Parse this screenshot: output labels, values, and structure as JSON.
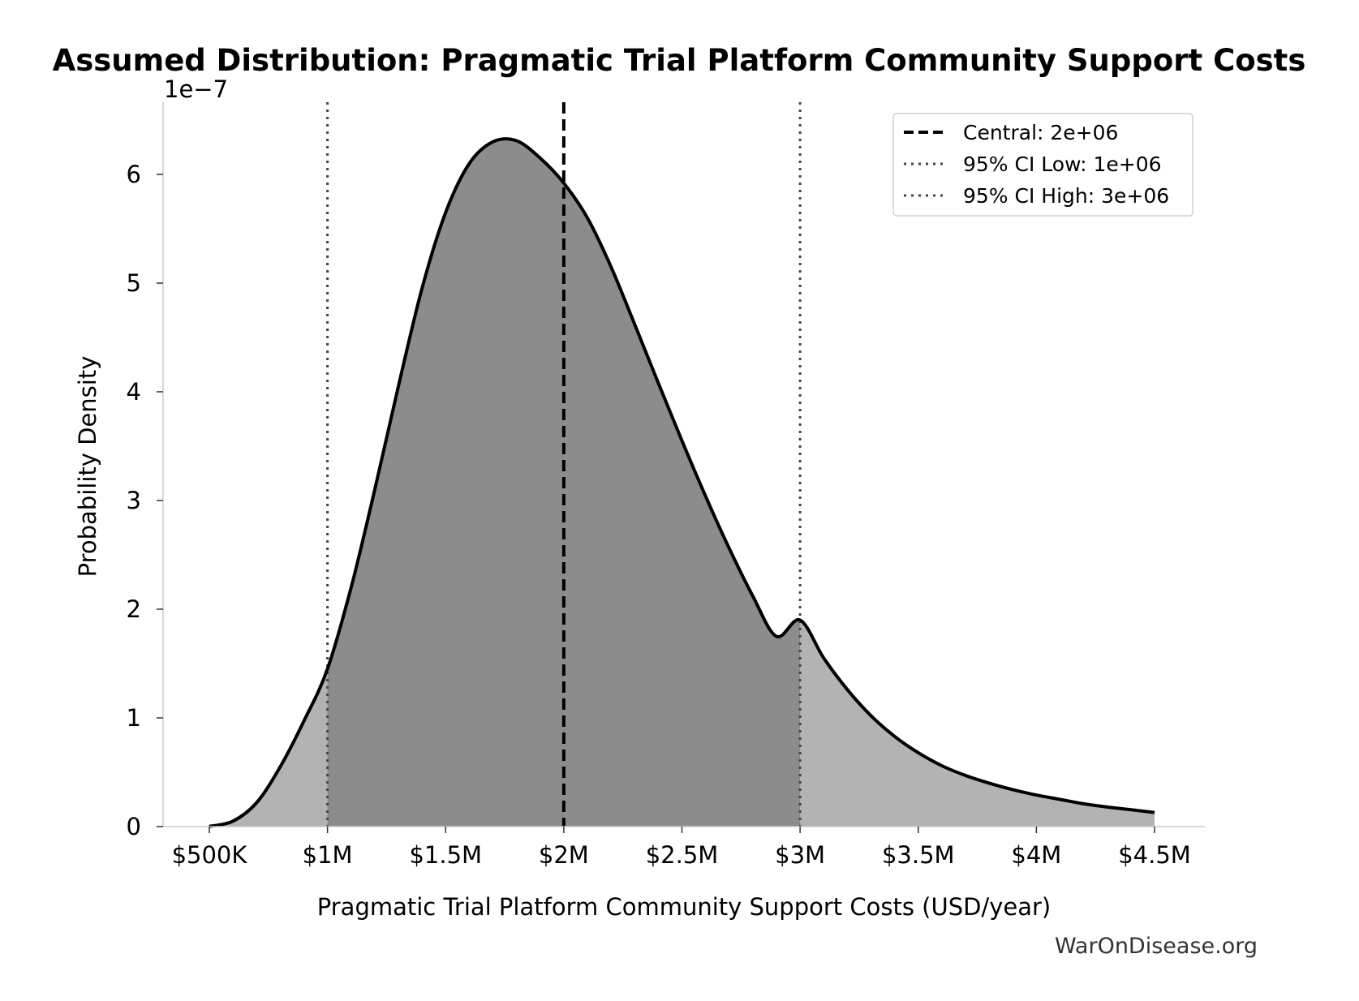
{
  "chart_data": {
    "type": "area",
    "title": "Assumed Distribution: Pragmatic Trial Platform Community Support Costs",
    "xlabel": "Pragmatic Trial Platform Community Support Costs (USD/year)",
    "ylabel": "Probability Density",
    "y_scale_label": "1e−7",
    "y_multiplier": 1e-07,
    "xlim": [
      400000,
      4700000
    ],
    "ylim": [
      0,
      6.6
    ],
    "x_ticks": [
      {
        "value": 500000,
        "label": "$500K"
      },
      {
        "value": 1000000,
        "label": "$1M"
      },
      {
        "value": 1500000,
        "label": "$1.5M"
      },
      {
        "value": 2000000,
        "label": "$2M"
      },
      {
        "value": 2500000,
        "label": "$2.5M"
      },
      {
        "value": 3000000,
        "label": "$3M"
      },
      {
        "value": 3500000,
        "label": "$3.5M"
      },
      {
        "value": 4000000,
        "label": "$4M"
      },
      {
        "value": 4500000,
        "label": "$4.5M"
      }
    ],
    "y_ticks": [
      {
        "value": 0,
        "label": "0"
      },
      {
        "value": 1,
        "label": "1"
      },
      {
        "value": 2,
        "label": "2"
      },
      {
        "value": 3,
        "label": "3"
      },
      {
        "value": 4,
        "label": "4"
      },
      {
        "value": 5,
        "label": "5"
      },
      {
        "value": 6,
        "label": "6"
      }
    ],
    "series": [
      {
        "x": [
          500000,
          600000,
          700000,
          800000,
          900000,
          1000000,
          1100000,
          1200000,
          1300000,
          1400000,
          1500000,
          1600000,
          1700000,
          1800000,
          1900000,
          2000000,
          2100000,
          2200000,
          2300000,
          2400000,
          2500000,
          2600000,
          2700000,
          2800000,
          2900000,
          3000000,
          3100000,
          3200000,
          3300000,
          3400000,
          3500000,
          3600000,
          3700000,
          3800000,
          3900000,
          4000000,
          4100000,
          4200000,
          4300000,
          4400000,
          4500000
        ],
        "y": [
          0.002,
          0.05,
          0.22,
          0.55,
          0.97,
          1.45,
          2.2,
          3.1,
          4.05,
          4.95,
          5.65,
          6.1,
          6.3,
          6.31,
          6.15,
          5.92,
          5.6,
          5.15,
          4.62,
          4.08,
          3.55,
          3.04,
          2.56,
          2.12,
          1.75,
          1.9,
          1.55,
          1.26,
          1.02,
          0.83,
          0.68,
          0.56,
          0.47,
          0.4,
          0.34,
          0.29,
          0.25,
          0.21,
          0.18,
          0.155,
          0.13
        ]
      }
    ],
    "reference_lines": [
      {
        "name": "Central: 2e+06",
        "x": 2000000,
        "style": "dashed",
        "color": "#000000"
      },
      {
        "name": "95% CI Low: 1e+06",
        "x": 1000000,
        "style": "dotted",
        "color": "#444444"
      },
      {
        "name": "95% CI High: 3e+06",
        "x": 3000000,
        "style": "dotted",
        "color": "#444444"
      }
    ],
    "shaded_interval": [
      1000000,
      3000000
    ],
    "legend_position": "top-right",
    "grid": false,
    "colors": {
      "curve": "#000000",
      "fill_tail": "#b3b3b3",
      "fill_ci": "#8c8c8c",
      "axis": "#cccccc",
      "watermark": "#333333"
    }
  },
  "watermark": "WarOnDisease.org"
}
